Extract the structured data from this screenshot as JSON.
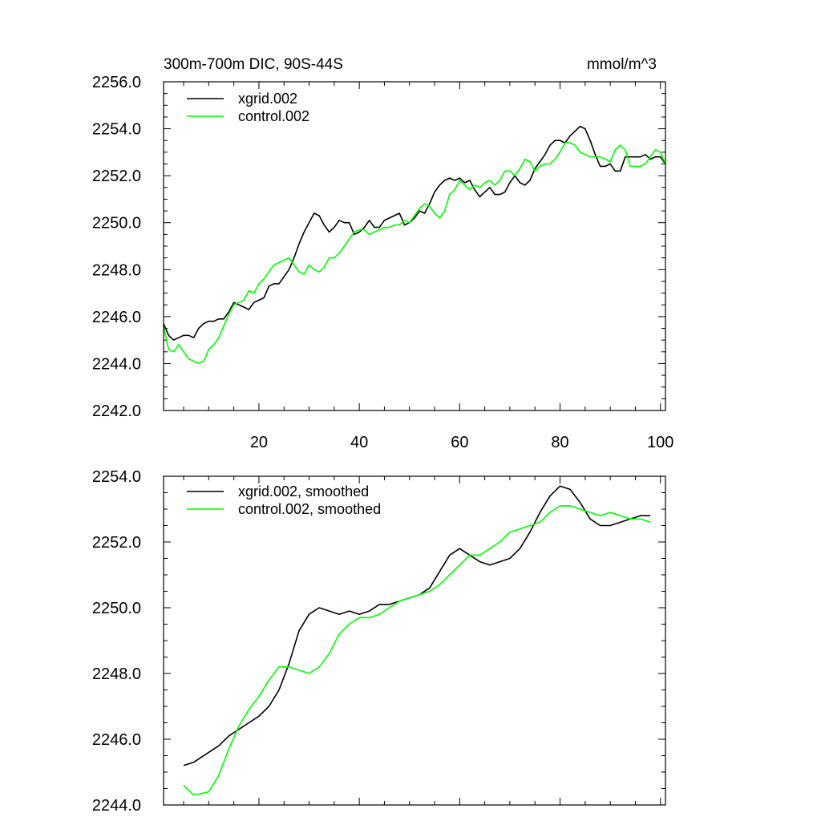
{
  "chart_data": [
    {
      "type": "line",
      "title": "300m-700m DIC, 90S-44S",
      "units": "mmol/m^3",
      "xlim": [
        1,
        101
      ],
      "ylim": [
        2242,
        2256
      ],
      "x_ticks": [
        20,
        40,
        60,
        80,
        100
      ],
      "y_ticks": [
        2242,
        2244,
        2246,
        2248,
        2250,
        2252,
        2254,
        2256
      ],
      "y_tick_labels": [
        "2242.0",
        "2244.0",
        "2246.0",
        "2248.0",
        "2250.0",
        "2252.0",
        "2254.0",
        "2256.0"
      ],
      "x_tick_labels": [
        "20",
        "40",
        "60",
        "80",
        "100"
      ],
      "legend_position": "top-left",
      "series": [
        {
          "name": "xgrid.002",
          "color": "#000000",
          "x": [
            1,
            2,
            3,
            4,
            5,
            6,
            7,
            8,
            9,
            10,
            11,
            12,
            13,
            14,
            15,
            16,
            17,
            18,
            19,
            20,
            21,
            22,
            23,
            24,
            25,
            26,
            27,
            28,
            29,
            30,
            31,
            32,
            33,
            34,
            35,
            36,
            37,
            38,
            39,
            40,
            41,
            42,
            43,
            44,
            45,
            46,
            47,
            48,
            49,
            50,
            51,
            52,
            53,
            54,
            55,
            56,
            57,
            58,
            59,
            60,
            61,
            62,
            63,
            64,
            65,
            66,
            67,
            68,
            69,
            70,
            71,
            72,
            73,
            74,
            75,
            76,
            77,
            78,
            79,
            80,
            81,
            82,
            83,
            84,
            85,
            86,
            87,
            88,
            89,
            90,
            91,
            92,
            93,
            94,
            95,
            96,
            97,
            98,
            99,
            100,
            101
          ],
          "values": [
            2245.7,
            2245.2,
            2245.0,
            2245.1,
            2245.2,
            2245.2,
            2245.1,
            2245.5,
            2245.7,
            2245.8,
            2245.8,
            2245.9,
            2245.9,
            2246.2,
            2246.6,
            2246.5,
            2246.4,
            2246.3,
            2246.6,
            2246.7,
            2246.8,
            2247.3,
            2247.4,
            2247.4,
            2247.7,
            2248.0,
            2248.5,
            2249.1,
            2249.6,
            2250.0,
            2250.4,
            2250.3,
            2249.9,
            2249.6,
            2249.8,
            2250.1,
            2250.0,
            2250.0,
            2249.5,
            2249.6,
            2249.8,
            2250.1,
            2249.8,
            2249.8,
            2250.1,
            2250.2,
            2250.3,
            2250.4,
            2249.9,
            2250.0,
            2250.2,
            2250.5,
            2250.4,
            2250.8,
            2251.3,
            2251.6,
            2251.8,
            2251.9,
            2251.8,
            2251.9,
            2251.7,
            2251.8,
            2251.4,
            2251.1,
            2251.3,
            2251.5,
            2251.2,
            2251.2,
            2251.3,
            2251.7,
            2252.0,
            2251.7,
            2251.6,
            2251.8,
            2252.3,
            2252.6,
            2252.9,
            2253.3,
            2253.5,
            2253.5,
            2253.4,
            2253.7,
            2253.9,
            2254.1,
            2254.0,
            2253.5,
            2252.9,
            2252.4,
            2252.4,
            2252.5,
            2252.2,
            2252.2,
            2252.8,
            2252.8,
            2252.8,
            2252.8,
            2252.9,
            2252.7,
            2252.8,
            2252.8,
            2252.5
          ]
        },
        {
          "name": "control.002",
          "color": "#00ff00",
          "x": [
            1,
            2,
            3,
            4,
            5,
            6,
            7,
            8,
            9,
            10,
            11,
            12,
            13,
            14,
            15,
            16,
            17,
            18,
            19,
            20,
            21,
            22,
            23,
            24,
            25,
            26,
            27,
            28,
            29,
            30,
            31,
            32,
            33,
            34,
            35,
            36,
            37,
            38,
            39,
            40,
            41,
            42,
            43,
            44,
            45,
            46,
            47,
            48,
            49,
            50,
            51,
            52,
            53,
            54,
            55,
            56,
            57,
            58,
            59,
            60,
            61,
            62,
            63,
            64,
            65,
            66,
            67,
            68,
            69,
            70,
            71,
            72,
            73,
            74,
            75,
            76,
            77,
            78,
            79,
            80,
            81,
            82,
            83,
            84,
            85,
            86,
            87,
            88,
            89,
            90,
            91,
            92,
            93,
            94,
            95,
            96,
            97,
            98,
            99,
            100,
            101
          ],
          "values": [
            2245.6,
            2244.6,
            2244.5,
            2244.8,
            2244.5,
            2244.2,
            2244.1,
            2244.0,
            2244.1,
            2244.6,
            2244.8,
            2245.1,
            2245.6,
            2246.1,
            2246.5,
            2246.6,
            2246.7,
            2247.1,
            2247.0,
            2247.4,
            2247.6,
            2247.9,
            2248.2,
            2248.3,
            2248.4,
            2248.5,
            2248.2,
            2247.9,
            2247.8,
            2248.2,
            2248.0,
            2247.9,
            2248.1,
            2248.5,
            2248.5,
            2248.7,
            2249.0,
            2249.3,
            2249.6,
            2249.7,
            2249.7,
            2249.5,
            2249.6,
            2249.7,
            2249.8,
            2249.8,
            2249.9,
            2249.9,
            2250.1,
            2250.0,
            2250.3,
            2250.6,
            2250.8,
            2250.7,
            2250.4,
            2250.2,
            2250.5,
            2251.2,
            2251.4,
            2251.8,
            2251.6,
            2251.4,
            2251.6,
            2251.5,
            2251.7,
            2251.8,
            2251.6,
            2251.8,
            2252.2,
            2252.2,
            2252.0,
            2252.3,
            2252.7,
            2252.6,
            2252.2,
            2252.4,
            2252.5,
            2252.5,
            2252.7,
            2253.0,
            2253.4,
            2253.4,
            2253.3,
            2253.0,
            2252.9,
            2252.8,
            2252.8,
            2252.8,
            2252.7,
            2252.6,
            2253.1,
            2253.3,
            2253.1,
            2252.4,
            2252.4,
            2252.4,
            2252.5,
            2252.8,
            2253.1,
            2253.0,
            2252.5
          ]
        }
      ]
    },
    {
      "type": "line",
      "title": "",
      "xlim": [
        1,
        101
      ],
      "ylim": [
        2244,
        2254
      ],
      "x_ticks": [
        20,
        40,
        60,
        80,
        100
      ],
      "y_ticks": [
        2244,
        2246,
        2248,
        2250,
        2252,
        2254
      ],
      "y_tick_labels": [
        "2244.0",
        "2246.0",
        "2248.0",
        "2250.0",
        "2252.0",
        "2254.0"
      ],
      "legend_position": "top-left",
      "series": [
        {
          "name": "xgrid.002, smoothed",
          "color": "#000000",
          "x": [
            5,
            7,
            10,
            12,
            14,
            16,
            18,
            20,
            22,
            24,
            26,
            28,
            30,
            32,
            34,
            36,
            38,
            40,
            42,
            44,
            46,
            48,
            50,
            52,
            54,
            56,
            58,
            60,
            62,
            64,
            66,
            68,
            70,
            72,
            74,
            76,
            78,
            80,
            82,
            84,
            86,
            88,
            90,
            92,
            94,
            96,
            98
          ],
          "values": [
            2245.2,
            2245.3,
            2245.6,
            2245.8,
            2246.1,
            2246.3,
            2246.5,
            2246.7,
            2247.0,
            2247.5,
            2248.3,
            2249.3,
            2249.8,
            2250.0,
            2249.9,
            2249.8,
            2249.9,
            2249.8,
            2249.9,
            2250.1,
            2250.1,
            2250.2,
            2250.3,
            2250.4,
            2250.6,
            2251.1,
            2251.6,
            2251.8,
            2251.6,
            2251.4,
            2251.3,
            2251.4,
            2251.5,
            2251.8,
            2252.3,
            2252.9,
            2253.4,
            2253.7,
            2253.6,
            2253.2,
            2252.7,
            2252.5,
            2252.5,
            2252.6,
            2252.7,
            2252.8,
            2252.8
          ]
        },
        {
          "name": "control.002, smoothed",
          "color": "#00ff00",
          "x": [
            5,
            7,
            10,
            12,
            14,
            16,
            18,
            20,
            22,
            24,
            26,
            28,
            30,
            32,
            34,
            36,
            38,
            40,
            42,
            44,
            46,
            48,
            50,
            52,
            54,
            56,
            58,
            60,
            62,
            64,
            66,
            68,
            70,
            72,
            74,
            76,
            78,
            80,
            82,
            84,
            86,
            88,
            90,
            92,
            94,
            96,
            98
          ],
          "values": [
            2244.6,
            2244.3,
            2244.4,
            2244.9,
            2245.7,
            2246.4,
            2246.9,
            2247.3,
            2247.8,
            2248.2,
            2248.2,
            2248.1,
            2248.0,
            2248.2,
            2248.6,
            2249.2,
            2249.5,
            2249.7,
            2249.7,
            2249.8,
            2250.0,
            2250.2,
            2250.3,
            2250.4,
            2250.5,
            2250.7,
            2251.0,
            2251.3,
            2251.6,
            2251.6,
            2251.8,
            2252.0,
            2252.3,
            2252.4,
            2252.5,
            2252.6,
            2252.9,
            2253.1,
            2253.1,
            2253.0,
            2252.9,
            2252.8,
            2252.9,
            2252.8,
            2252.7,
            2252.7,
            2252.6
          ]
        }
      ]
    }
  ]
}
